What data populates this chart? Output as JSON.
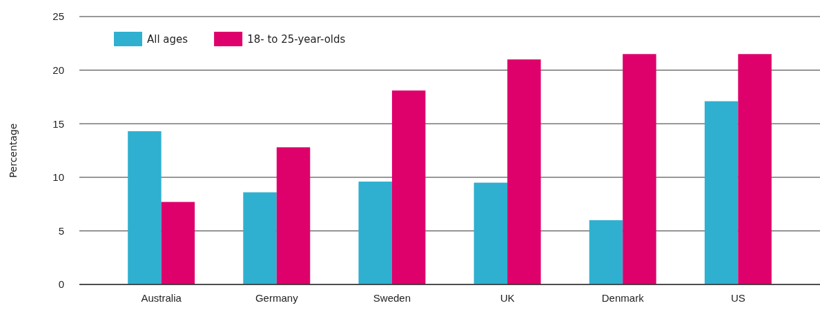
{
  "chart_data": {
    "type": "bar",
    "ylabel": "Percentage",
    "categories": [
      "Australia",
      "Germany",
      "Sweden",
      "UK",
      "Denmark",
      "US"
    ],
    "series": [
      {
        "name": "All ages",
        "color": "#2fb0d0",
        "values": [
          14.3,
          8.6,
          9.6,
          9.5,
          6.0,
          17.1
        ]
      },
      {
        "name": "18- to 25-year-olds",
        "color": "#de006b",
        "values": [
          7.7,
          12.8,
          18.1,
          21.0,
          21.5,
          21.5
        ]
      }
    ],
    "ylim": [
      0,
      25
    ],
    "yticks": [
      0,
      5,
      10,
      15,
      20,
      25
    ],
    "grid": "y",
    "legend": "top left"
  }
}
